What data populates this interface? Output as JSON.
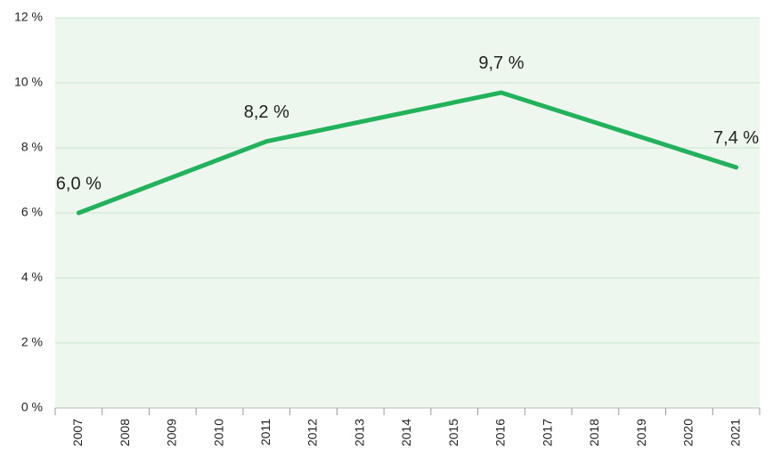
{
  "chart_data": {
    "type": "line",
    "x": [
      2007,
      2011,
      2016,
      2021
    ],
    "series": [
      {
        "color": "#22b25b",
        "values": [
          6.0,
          8.2,
          9.7,
          7.4
        ],
        "value_labels": [
          "6,0 %",
          "8,2 %",
          "9,7 %",
          "7,4 %"
        ]
      }
    ],
    "xlim": [
      2006.5,
      2021.5
    ],
    "xticks": [
      2007,
      2008,
      2009,
      2010,
      2011,
      2012,
      2013,
      2014,
      2015,
      2016,
      2017,
      2018,
      2019,
      2020,
      2021
    ],
    "ylim": [
      0,
      12
    ],
    "yticks": [
      {
        "value": 0,
        "label": "0 %"
      },
      {
        "value": 2,
        "label": "2 %"
      },
      {
        "value": 4,
        "label": "4 %"
      },
      {
        "value": 6,
        "label": "6 %"
      },
      {
        "value": 8,
        "label": "8 %"
      },
      {
        "value": 10,
        "label": "10 %"
      },
      {
        "value": 12,
        "label": "12 %"
      }
    ],
    "grid": true,
    "background": "#eef7ee",
    "grid_color": "#c9e6cf"
  }
}
